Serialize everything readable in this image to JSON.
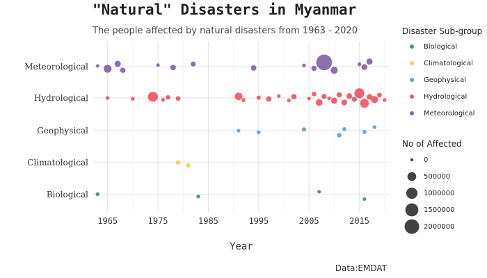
{
  "chart_data": {
    "type": "scatter",
    "title": "\"Natural\" Disasters in Myanmar",
    "subtitle": "The people affected by natural disasters from 1963 - 2020",
    "xlabel": "Year",
    "ylabel": "",
    "caption": "Data:EMDAT",
    "xlim": [
      1962,
      2021
    ],
    "x_ticks": [
      "1965",
      "1975",
      "1985",
      "1995",
      "2005",
      "2015"
    ],
    "categories": [
      "Biological",
      "Climatological",
      "Geophysical",
      "Hydrological",
      "Meteorological"
    ],
    "colors": {
      "Biological": "#2e7d4f",
      "Climatological": "#f5c94a",
      "Geophysical": "#4a90c8",
      "Hydrological": "#f03a4a",
      "Meteorological": "#6f4c9b"
    },
    "color_legend": {
      "title": "Disaster Sub-group",
      "items": [
        "Biological",
        "Climatological",
        "Geophysical",
        "Hydrological",
        "Meteorological"
      ]
    },
    "size_legend": {
      "title": "No of Affected",
      "values": [
        "0",
        "500000",
        "1000000",
        "1500000",
        "2000000"
      ]
    },
    "grid": true,
    "legend_position": "right",
    "series": [
      {
        "name": "Meteorological",
        "points": [
          {
            "x": 1963,
            "y": "Meteorological",
            "dy": -0.05,
            "affected": 2000
          },
          {
            "x": 1965,
            "y": "Meteorological",
            "dy": 0.13,
            "affected": 350000
          },
          {
            "x": 1967,
            "y": "Meteorological",
            "dy": -0.18,
            "affected": 150000
          },
          {
            "x": 1968,
            "y": "Meteorological",
            "dy": 0.22,
            "affected": 80000
          },
          {
            "x": 1975,
            "y": "Meteorological",
            "dy": -0.1,
            "affected": 3000
          },
          {
            "x": 1978,
            "y": "Meteorological",
            "dy": 0.05,
            "affected": 100000
          },
          {
            "x": 1982,
            "y": "Meteorological",
            "dy": -0.17,
            "affected": 60000
          },
          {
            "x": 1994,
            "y": "Meteorological",
            "dy": 0.08,
            "affected": 90000
          },
          {
            "x": 2004,
            "y": "Meteorological",
            "dy": -0.08,
            "affected": 5000
          },
          {
            "x": 2006,
            "y": "Meteorological",
            "dy": 0.1,
            "affected": 80000
          },
          {
            "x": 2008,
            "y": "Meteorological",
            "dy": -0.27,
            "affected": 2400000
          },
          {
            "x": 2010,
            "y": "Meteorological",
            "dy": 0.22,
            "affected": 250000
          },
          {
            "x": 2015,
            "y": "Meteorological",
            "dy": -0.15,
            "affected": 10000
          },
          {
            "x": 2016,
            "y": "Meteorological",
            "dy": 0.02,
            "affected": 120000
          },
          {
            "x": 2017,
            "y": "Meteorological",
            "dy": -0.32,
            "affected": 150000
          }
        ]
      },
      {
        "name": "Hydrological",
        "points": [
          {
            "x": 1965,
            "y": "Hydrological",
            "dy": 0.0,
            "affected": 5000
          },
          {
            "x": 1970,
            "y": "Hydrological",
            "dy": 0.05,
            "affected": 10000
          },
          {
            "x": 1974,
            "y": "Hydrological",
            "dy": -0.08,
            "affected": 700000
          },
          {
            "x": 1976,
            "y": "Hydrological",
            "dy": 0.12,
            "affected": 8000
          },
          {
            "x": 1977,
            "y": "Hydrological",
            "dy": -0.04,
            "affected": 30000
          },
          {
            "x": 1979,
            "y": "Hydrological",
            "dy": 0.03,
            "affected": 40000
          },
          {
            "x": 1991,
            "y": "Hydrological",
            "dy": -0.1,
            "affected": 300000
          },
          {
            "x": 1992,
            "y": "Hydrological",
            "dy": 0.13,
            "affected": 10000
          },
          {
            "x": 1995,
            "y": "Hydrological",
            "dy": -0.02,
            "affected": 20000
          },
          {
            "x": 1997,
            "y": "Hydrological",
            "dy": 0.06,
            "affected": 80000
          },
          {
            "x": 1999,
            "y": "Hydrological",
            "dy": -0.12,
            "affected": 5000
          },
          {
            "x": 2001,
            "y": "Hydrological",
            "dy": 0.15,
            "affected": 5000
          },
          {
            "x": 2002,
            "y": "Hydrological",
            "dy": -0.08,
            "affected": 80000
          },
          {
            "x": 2005,
            "y": "Hydrological",
            "dy": 0.03,
            "affected": 5000
          },
          {
            "x": 2006,
            "y": "Hydrological",
            "dy": -0.25,
            "affected": 40000
          },
          {
            "x": 2007,
            "y": "Hydrological",
            "dy": 0.28,
            "affected": 200000
          },
          {
            "x": 2008,
            "y": "Hydrological",
            "dy": -0.1,
            "affected": 60000
          },
          {
            "x": 2009,
            "y": "Hydrological",
            "dy": 0.02,
            "affected": 8000
          },
          {
            "x": 2010,
            "y": "Hydrological",
            "dy": 0.17,
            "affected": 150000
          },
          {
            "x": 2011,
            "y": "Hydrological",
            "dy": -0.2,
            "affected": 70000
          },
          {
            "x": 2012,
            "y": "Hydrological",
            "dy": 0.28,
            "affected": 120000
          },
          {
            "x": 2013,
            "y": "Hydrological",
            "dy": -0.12,
            "affected": 100000
          },
          {
            "x": 2014,
            "y": "Hydrological",
            "dy": 0.08,
            "affected": 60000
          },
          {
            "x": 2015,
            "y": "Hydrological",
            "dy": -0.3,
            "affected": 700000
          },
          {
            "x": 2016,
            "y": "Hydrological",
            "dy": 0.33,
            "affected": 500000
          },
          {
            "x": 2017,
            "y": "Hydrological",
            "dy": -0.07,
            "affected": 100000
          },
          {
            "x": 2018,
            "y": "Hydrological",
            "dy": 0.1,
            "affected": 250000
          },
          {
            "x": 2019,
            "y": "Hydrological",
            "dy": -0.18,
            "affected": 40000
          },
          {
            "x": 2020,
            "y": "Hydrological",
            "dy": 0.13,
            "affected": 8000
          }
        ]
      },
      {
        "name": "Geophysical",
        "points": [
          {
            "x": 1991,
            "y": "Geophysical",
            "dy": 0.0,
            "affected": 5000
          },
          {
            "x": 1995,
            "y": "Geophysical",
            "dy": 0.1,
            "affected": 8000
          },
          {
            "x": 2004,
            "y": "Geophysical",
            "dy": -0.08,
            "affected": 20000
          },
          {
            "x": 2011,
            "y": "Geophysical",
            "dy": 0.28,
            "affected": 30000
          },
          {
            "x": 2012,
            "y": "Geophysical",
            "dy": -0.1,
            "affected": 12000
          },
          {
            "x": 2016,
            "y": "Geophysical",
            "dy": 0.08,
            "affected": 15000
          },
          {
            "x": 2018,
            "y": "Geophysical",
            "dy": -0.22,
            "affected": 8000
          }
        ]
      },
      {
        "name": "Climatological",
        "points": [
          {
            "x": 1979,
            "y": "Climatological",
            "dy": 0.0,
            "affected": 40000
          },
          {
            "x": 1981,
            "y": "Climatological",
            "dy": 0.18,
            "affected": 30000
          }
        ]
      },
      {
        "name": "Biological",
        "points": [
          {
            "x": 1963,
            "y": "Biological",
            "dy": -0.03,
            "affected": 8000
          },
          {
            "x": 1983,
            "y": "Biological",
            "dy": 0.12,
            "affected": 8000
          },
          {
            "x": 2007,
            "y": "Biological",
            "dy": -0.18,
            "affected": 5000
          },
          {
            "x": 2016,
            "y": "Biological",
            "dy": 0.28,
            "affected": 5000
          }
        ]
      }
    ]
  }
}
